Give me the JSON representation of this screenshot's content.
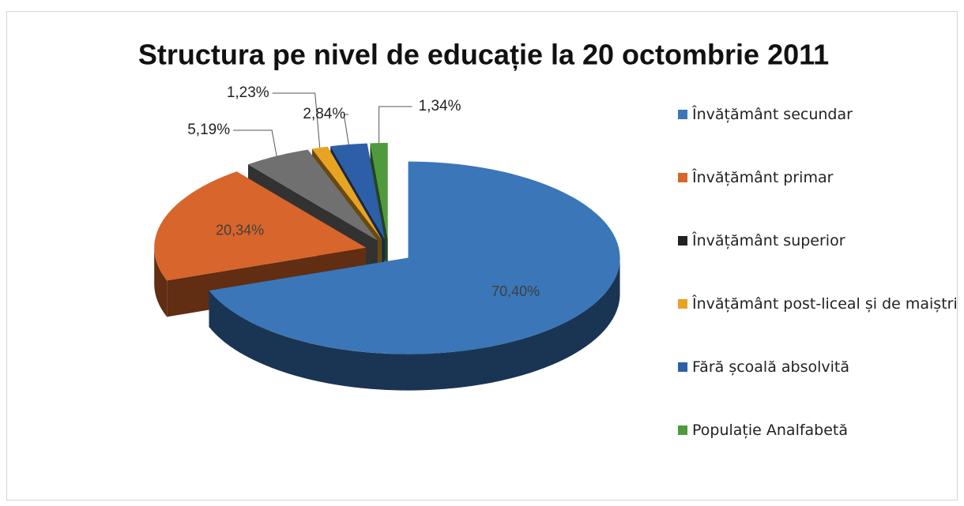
{
  "chart_data": {
    "type": "pie",
    "title": "Structura pe nivel de educație la 20 octombrie 2011",
    "categories": [
      "Învățământ secundar",
      "Învățământ primar",
      "Învățământ superior",
      "Învățământ post-liceal și de maiștri",
      "Fără școală absolvită",
      "Populație Analfabetă"
    ],
    "values": [
      70.4,
      20.34,
      5.19,
      1.23,
      2.84,
      1.34
    ],
    "value_labels": [
      "70,40%",
      "20,34%",
      "5,19%",
      "1,23%",
      "2,84%",
      "1,34%"
    ],
    "colors": [
      "#3a76b8",
      "#d8652b",
      "#707070",
      "#e9a322",
      "#2d5ea8",
      "#4f9a3c"
    ]
  }
}
